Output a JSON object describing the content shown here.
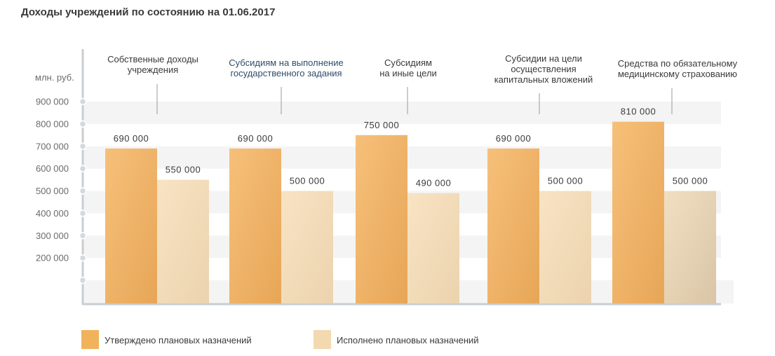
{
  "header": {
    "title": "Доходы учреждений по состоянию на 01.06.2017",
    "unit_label": "млн. руб."
  },
  "colors": {
    "approved": "#f0b35c",
    "executed": "#f3d9b0",
    "band": "#f4f4f4",
    "axis": "#c8cdd2",
    "category_highlight": "#2e4d6b"
  },
  "legend": [
    {
      "label": "Утверждено плановых назначений",
      "color": "#f0b35c"
    },
    {
      "label": "Исполнено плановых назначений",
      "color": "#f3d9b0"
    }
  ],
  "chart_data": {
    "type": "bar",
    "categories": [
      "Собственные доходы\nучреждения",
      "Субсидиям на выполнение\nгосударственного задания",
      "Субсидиям\nна иные цели",
      "Субсидии на цели\nосуществления\nкапитальных вложений",
      "Средства по обязательному\nмедицинскому страхованию"
    ],
    "highlighted_categories": [
      1
    ],
    "series": [
      {
        "name": "Утверждено плановых назначений",
        "values": [
          690000,
          690000,
          750000,
          690000,
          810000
        ],
        "labels": [
          "690 000",
          "690 000",
          "750 000",
          "690 000",
          "810 000"
        ]
      },
      {
        "name": "Исполнено плановых назначений",
        "values": [
          550000,
          500000,
          490000,
          500000,
          500000
        ],
        "labels": [
          "550 000",
          "500 000",
          "490 000",
          "500 000",
          "500 000"
        ]
      }
    ],
    "y_ticks": [
      {
        "value": 900000,
        "label": "900 000"
      },
      {
        "value": 800000,
        "label": "800 000"
      },
      {
        "value": 700000,
        "label": "700 000"
      },
      {
        "value": 600000,
        "label": "600 000"
      },
      {
        "value": 500000,
        "label": "500 000"
      },
      {
        "value": 400000,
        "label": "400 000"
      },
      {
        "value": 300000,
        "label": "300 000"
      },
      {
        "value": 200000,
        "label": "200 000"
      }
    ],
    "ylabel": "млн. руб.",
    "ylim": [
      0,
      900000
    ],
    "grid": "alternating bands",
    "legend_position": "bottom-left"
  }
}
